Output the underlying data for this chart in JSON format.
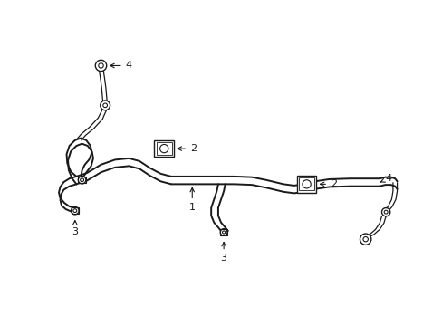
{
  "bg_color": "#ffffff",
  "line_color": "#1a1a1a",
  "lw_main": 1.4,
  "lw_thin": 0.9,
  "lw_label": 0.8,
  "label_fs": 8,
  "figsize": [
    4.89,
    3.6
  ],
  "dpi": 100
}
